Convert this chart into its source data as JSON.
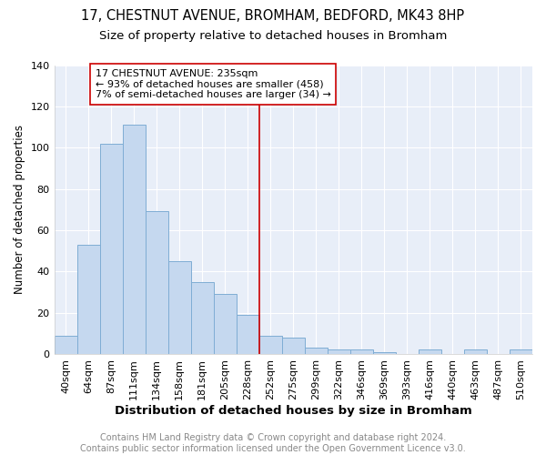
{
  "title": "17, CHESTNUT AVENUE, BROMHAM, BEDFORD, MK43 8HP",
  "subtitle": "Size of property relative to detached houses in Bromham",
  "xlabel": "Distribution of detached houses by size in Bromham",
  "ylabel": "Number of detached properties",
  "bar_labels": [
    "40sqm",
    "64sqm",
    "87sqm",
    "111sqm",
    "134sqm",
    "158sqm",
    "181sqm",
    "205sqm",
    "228sqm",
    "252sqm",
    "275sqm",
    "299sqm",
    "322sqm",
    "346sqm",
    "369sqm",
    "393sqm",
    "416sqm",
    "440sqm",
    "463sqm",
    "487sqm",
    "510sqm"
  ],
  "bar_heights": [
    9,
    53,
    102,
    111,
    69,
    45,
    35,
    29,
    19,
    9,
    8,
    3,
    2,
    2,
    1,
    0,
    2,
    0,
    2,
    0,
    2
  ],
  "bar_color": "#c5d8ef",
  "bar_edge_color": "#7fadd4",
  "vline_x": 8.5,
  "vline_color": "#cc0000",
  "annotation_text": "17 CHESTNUT AVENUE: 235sqm\n← 93% of detached houses are smaller (458)\n7% of semi-detached houses are larger (34) →",
  "annotation_box_color": "#ffffff",
  "annotation_box_edge": "#cc0000",
  "ylim": [
    0,
    140
  ],
  "yticks": [
    0,
    20,
    40,
    60,
    80,
    100,
    120,
    140
  ],
  "footer": "Contains HM Land Registry data © Crown copyright and database right 2024.\nContains public sector information licensed under the Open Government Licence v3.0.",
  "background_color": "#ffffff",
  "plot_background_color": "#e8eef8",
  "title_fontsize": 10.5,
  "subtitle_fontsize": 9.5,
  "xlabel_fontsize": 9.5,
  "ylabel_fontsize": 8.5,
  "footer_fontsize": 7,
  "tick_fontsize": 8
}
